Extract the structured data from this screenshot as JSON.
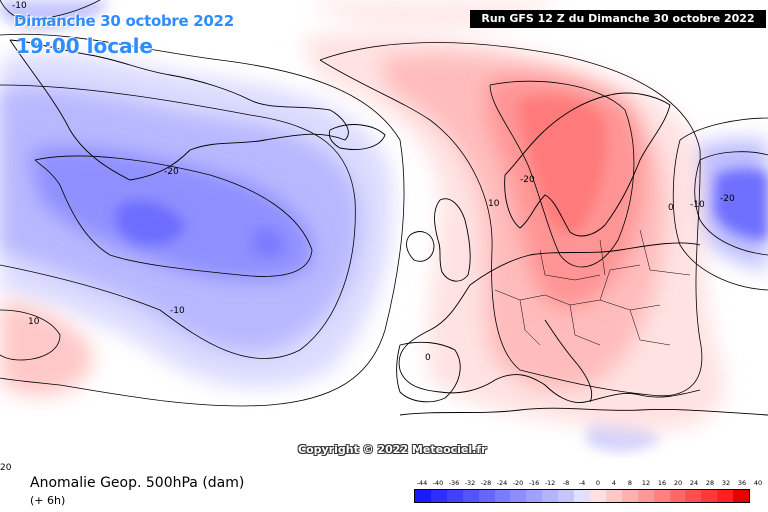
{
  "header": {
    "date": "Dimanche 30 octobre 2022",
    "time": "19:00 locale",
    "run": "Run GFS 12 Z du Dimanche 30 octobre 2022"
  },
  "footer": {
    "product_title": "Anomalie Geop. 500hPa (dam)",
    "lead_time": "(+ 6h)",
    "copyright": "Copyright © 2022 Meteociel.fr"
  },
  "contour_labels": [
    "-10",
    "-20",
    "-10",
    "10",
    "-20",
    "10",
    "0",
    "-10",
    "-20",
    "20",
    "0"
  ],
  "legend": {
    "labels": [
      "-44",
      "-40",
      "-36",
      "-32",
      "-28",
      "-24",
      "-20",
      "-16",
      "-12",
      "-8",
      "-4",
      "0",
      "4",
      "8",
      "12",
      "16",
      "20",
      "24",
      "28",
      "32",
      "36",
      "40"
    ],
    "colors": [
      "#1a1aff",
      "#2d2dff",
      "#4040ff",
      "#5353ff",
      "#6666ff",
      "#7a7aff",
      "#8d8dff",
      "#a0a0ff",
      "#b3b3ff",
      "#c6c6ff",
      "#e0e0ff",
      "#ffe0e0",
      "#ffc8c8",
      "#ffb0b0",
      "#ff9898",
      "#ff8080",
      "#ff6868",
      "#ff5050",
      "#ff3838",
      "#ff2020",
      "#e60000"
    ]
  }
}
